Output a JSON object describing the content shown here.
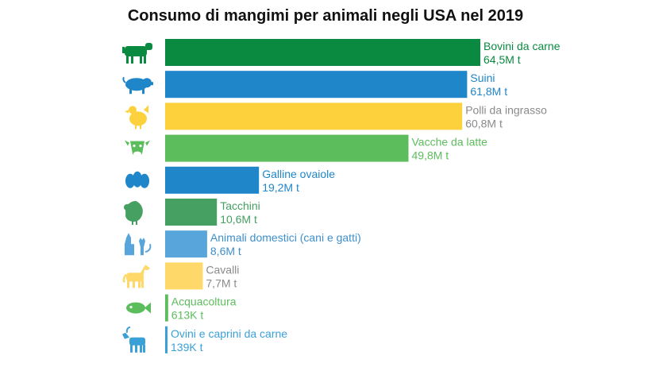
{
  "chart_data": {
    "type": "bar",
    "orientation": "horizontal",
    "title": "Consumo di mangimi per animali negli USA nel 2019",
    "unit": "t",
    "grid": false,
    "legend": "none",
    "categories": [
      {
        "name": "Bovini da carne",
        "value": 64500000,
        "label": "64,5M t",
        "color": "#0a8a40",
        "text_color": "#0a8a40",
        "icon": "cow-icon"
      },
      {
        "name": "Suini",
        "value": 61800000,
        "label": "61,8M t",
        "color": "#1f86c9",
        "text_color": "#1f86c9",
        "icon": "pig-icon"
      },
      {
        "name": "Polli da ingrasso",
        "value": 60800000,
        "label": "60,8M t",
        "color": "#fdd13b",
        "text_color": "#8a8a8a",
        "icon": "chicken-icon"
      },
      {
        "name": "Vacche da latte",
        "value": 49800000,
        "label": "49,8M t",
        "color": "#5cbd5c",
        "text_color": "#5cbd5c",
        "icon": "dairy-cow-icon"
      },
      {
        "name": "Galline ovaiole",
        "value": 19200000,
        "label": "19,2M t",
        "color": "#1f86c9",
        "text_color": "#1f86c9",
        "icon": "eggs-icon"
      },
      {
        "name": "Tacchini",
        "value": 10600000,
        "label": "10,6M t",
        "color": "#45a062",
        "text_color": "#45a062",
        "icon": "turkey-icon"
      },
      {
        "name": "Animali domestici (cani e gatti)",
        "value": 8600000,
        "label": "8,6M t",
        "color": "#58a5dc",
        "text_color": "#3d8fcc",
        "icon": "dog-and-cat-icon"
      },
      {
        "name": "Cavalli",
        "value": 7700000,
        "label": "7,7M t",
        "color": "#fed96a",
        "text_color": "#8a8a8a",
        "icon": "horse-icon"
      },
      {
        "name": "Acquacoltura",
        "value": 613000,
        "label": "613K t",
        "color": "#5cbd5c",
        "text_color": "#5cbd5c",
        "icon": "fish-icon"
      },
      {
        "name": "Ovini e caprini da carne",
        "value": 139000,
        "label": "139K t",
        "color": "#3aa0d8",
        "text_color": "#3aa0d8",
        "icon": "goat-icon"
      }
    ],
    "icon_colors": {
      "cow-icon": "#0a8a40",
      "pig-icon": "#1f86c9",
      "chicken-icon": "#fdd13b",
      "dairy-cow-icon": "#5cbd5c",
      "eggs-icon": "#1f86c9",
      "turkey-icon": "#45a062",
      "dog-and-cat-icon": "#58a5dc",
      "horse-icon": "#fed96a",
      "fish-icon": "#5cbd5c",
      "goat-icon": "#3aa0d8"
    }
  }
}
